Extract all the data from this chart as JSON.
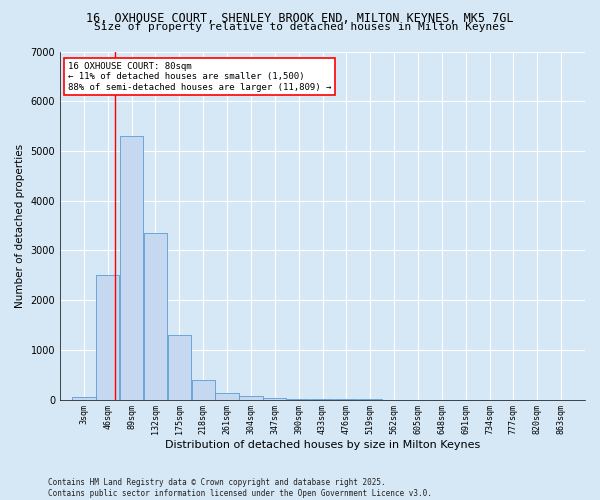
{
  "title_line1": "16, OXHOUSE COURT, SHENLEY BROOK END, MILTON KEYNES, MK5 7GL",
  "title_line2": "Size of property relative to detached houses in Milton Keynes",
  "xlabel": "Distribution of detached houses by size in Milton Keynes",
  "ylabel": "Number of detached properties",
  "annotation_line1": "16 OXHOUSE COURT: 80sqm",
  "annotation_line2": "← 11% of detached houses are smaller (1,500)",
  "annotation_line3": "88% of semi-detached houses are larger (11,809) →",
  "footer_line1": "Contains HM Land Registry data © Crown copyright and database right 2025.",
  "footer_line2": "Contains public sector information licensed under the Open Government Licence v3.0.",
  "bar_edges": [
    3,
    46,
    89,
    132,
    175,
    218,
    261,
    304,
    347,
    390,
    433,
    476,
    519,
    562,
    605,
    648,
    691,
    734,
    777,
    820,
    863
  ],
  "bar_heights": [
    50,
    2500,
    5300,
    3350,
    1300,
    400,
    130,
    80,
    30,
    10,
    5,
    3,
    2,
    1,
    1,
    0,
    0,
    0,
    0,
    0
  ],
  "bar_color": "#c5d8f0",
  "bar_edgecolor": "#5b9bd5",
  "property_line_x": 80,
  "background_color": "#d6e8f5",
  "plot_background": "#d6e8f5",
  "ylim": [
    0,
    7000
  ],
  "yticks": [
    0,
    1000,
    2000,
    3000,
    4000,
    5000,
    6000,
    7000
  ],
  "grid_color": "#ffffff",
  "tick_labels": [
    "3sqm",
    "46sqm",
    "89sqm",
    "132sqm",
    "175sqm",
    "218sqm",
    "261sqm",
    "304sqm",
    "347sqm",
    "390sqm",
    "433sqm",
    "476sqm",
    "519sqm",
    "562sqm",
    "605sqm",
    "648sqm",
    "691sqm",
    "734sqm",
    "777sqm",
    "820sqm",
    "863sqm"
  ],
  "title1_fontsize": 8.5,
  "title2_fontsize": 8,
  "xlabel_fontsize": 8,
  "ylabel_fontsize": 7.5,
  "tick_fontsize": 6,
  "ytick_fontsize": 7,
  "footer_fontsize": 5.5,
  "annot_fontsize": 6.5
}
